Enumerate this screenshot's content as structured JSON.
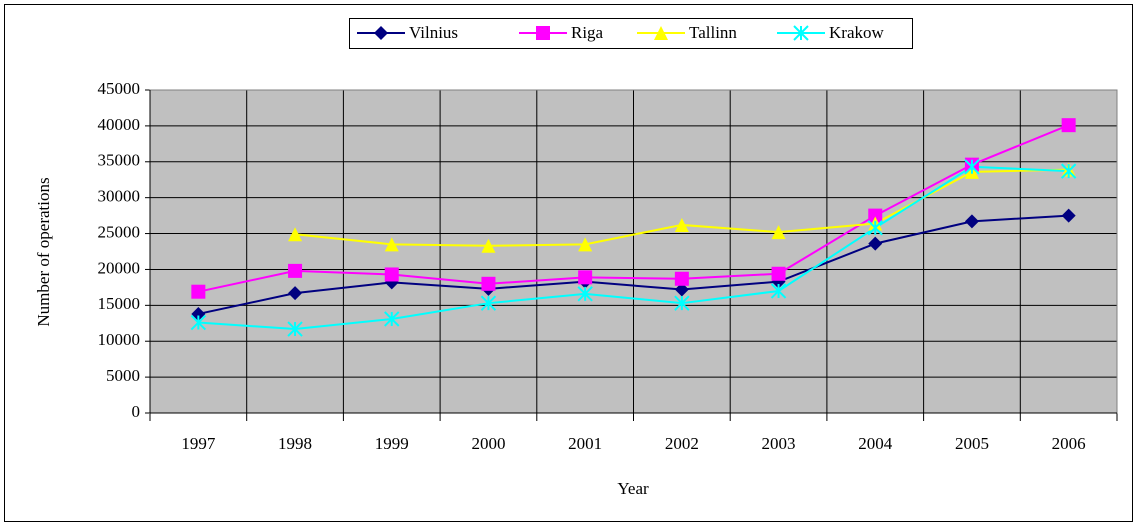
{
  "chart_data": {
    "type": "line",
    "categories": [
      "1997",
      "1998",
      "1999",
      "2000",
      "2001",
      "2002",
      "2003",
      "2004",
      "2005",
      "2006"
    ],
    "series": [
      {
        "name": "Vilnius",
        "color": "#000080",
        "marker": "diamond",
        "values": [
          13800,
          16700,
          18200,
          17300,
          18300,
          17200,
          18300,
          23600,
          26700,
          27500
        ]
      },
      {
        "name": "Riga",
        "color": "#ff00ff",
        "marker": "square",
        "values": [
          16900,
          19800,
          19300,
          18000,
          18900,
          18700,
          19400,
          27500,
          34600,
          40100
        ]
      },
      {
        "name": "Tallinn",
        "color": "#ffff00",
        "marker": "triangle",
        "values": [
          null,
          24900,
          23500,
          23300,
          23500,
          26200,
          25200,
          26400,
          33600,
          33900
        ]
      },
      {
        "name": "Krakow",
        "color": "#00ffff",
        "marker": "x",
        "values": [
          12600,
          11700,
          13100,
          15300,
          16600,
          15300,
          17000,
          25800,
          34300,
          33700
        ]
      }
    ],
    "x_label": "Year",
    "y_label": "Number of operations",
    "ylim": [
      0,
      45000
    ],
    "yticks": [
      0,
      5000,
      10000,
      15000,
      20000,
      25000,
      30000,
      35000,
      40000,
      45000
    ],
    "grid": true,
    "legend": "top",
    "plot_background": "#c0c0c0"
  }
}
